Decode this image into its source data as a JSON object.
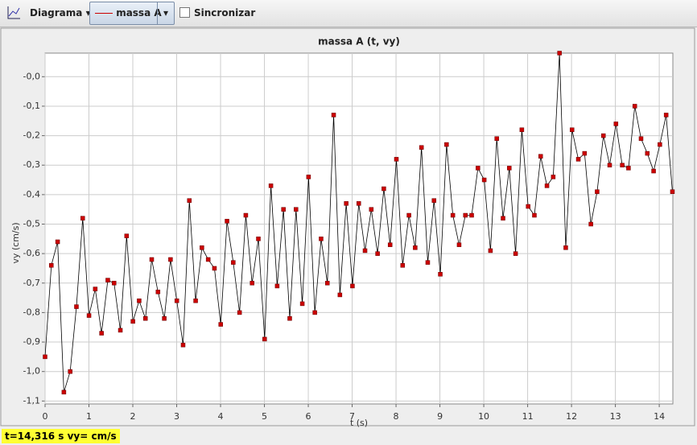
{
  "toolbar": {
    "menu": "Diagrama",
    "track": "massa A",
    "sync": "Sincronizar"
  },
  "status": "t=14,316 s  vy= cm/s",
  "chart_data": {
    "type": "line",
    "title": "massa A (t, vy)",
    "x_label": "t (s)",
    "y_label": "vy (cm/s)",
    "grid": true,
    "color": "#cc0000",
    "line_color": "#000000",
    "xlim": [
      0,
      14.31
    ],
    "ylim": [
      -1.11,
      0.08
    ],
    "xticks": [
      0,
      1,
      2,
      3,
      4,
      5,
      6,
      7,
      8,
      9,
      10,
      11,
      12,
      13,
      14
    ],
    "yticks": [
      {
        "value": 0,
        "label": "-0,0"
      },
      {
        "value": -0.1,
        "label": "-0,1"
      },
      {
        "value": -0.2,
        "label": "-0,2"
      },
      {
        "value": -0.3,
        "label": "-0,3"
      },
      {
        "value": -0.4,
        "label": "-0,4"
      },
      {
        "value": -0.5,
        "label": "-0,5"
      },
      {
        "value": -0.6,
        "label": "-0,6"
      },
      {
        "value": -0.7,
        "label": "-0,7"
      },
      {
        "value": -0.8,
        "label": "-0,8"
      },
      {
        "value": -0.9,
        "label": "-0,9"
      },
      {
        "value": -1.0,
        "label": "-1,0"
      },
      {
        "value": -1.1,
        "label": "-1,1"
      }
    ],
    "x": [
      0,
      0.143,
      0.286,
      0.429,
      0.572,
      0.715,
      0.858,
      1.001,
      1.144,
      1.287,
      1.43,
      1.573,
      1.716,
      1.859,
      2.002,
      2.145,
      2.288,
      2.431,
      2.574,
      2.717,
      2.86,
      3.003,
      3.146,
      3.289,
      3.432,
      3.575,
      3.718,
      3.861,
      4.004,
      4.147,
      4.29,
      4.433,
      4.576,
      4.719,
      4.862,
      5.005,
      5.148,
      5.291,
      5.434,
      5.577,
      5.72,
      5.863,
      6.006,
      6.149,
      6.292,
      6.435,
      6.578,
      6.721,
      6.864,
      7.007,
      7.15,
      7.293,
      7.436,
      7.579,
      7.722,
      7.865,
      8.008,
      8.151,
      8.294,
      8.437,
      8.58,
      8.723,
      8.866,
      9.009,
      9.152,
      9.295,
      9.438,
      9.581,
      9.724,
      9.867,
      10.01,
      10.153,
      10.296,
      10.439,
      10.582,
      10.725,
      10.868,
      11.011,
      11.154,
      11.297,
      11.44,
      11.583,
      11.726,
      11.869,
      12.012,
      12.155,
      12.298,
      12.441,
      12.584,
      12.727,
      12.87,
      13.013,
      13.156,
      13.299,
      13.442,
      13.585,
      13.728,
      13.871,
      14.014,
      14.157,
      14.3
    ],
    "values": [
      -0.95,
      -0.64,
      -0.56,
      -1.07,
      -1.0,
      -0.78,
      -0.48,
      -0.81,
      -0.72,
      -0.87,
      -0.69,
      -0.7,
      -0.86,
      -0.54,
      -0.83,
      -0.76,
      -0.82,
      -0.62,
      -0.73,
      -0.82,
      -0.62,
      -0.76,
      -0.91,
      -0.42,
      -0.76,
      -0.58,
      -0.62,
      -0.65,
      -0.84,
      -0.49,
      -0.63,
      -0.8,
      -0.47,
      -0.7,
      -0.55,
      -0.89,
      -0.37,
      -0.71,
      -0.45,
      -0.82,
      -0.45,
      -0.77,
      -0.34,
      -0.8,
      -0.55,
      -0.7,
      -0.13,
      -0.74,
      -0.43,
      -0.71,
      -0.43,
      -0.59,
      -0.45,
      -0.6,
      -0.38,
      -0.57,
      -0.28,
      -0.64,
      -0.47,
      -0.58,
      -0.24,
      -0.63,
      -0.42,
      -0.67,
      -0.23,
      -0.47,
      -0.57,
      -0.47,
      -0.47,
      -0.31,
      -0.35,
      -0.59,
      -0.21,
      -0.48,
      -0.31,
      -0.6,
      -0.18,
      -0.44,
      -0.47,
      -0.27,
      -0.37,
      -0.34,
      0.08,
      -0.58,
      -0.18,
      -0.28,
      -0.26,
      -0.5,
      -0.39,
      -0.2,
      -0.3,
      -0.16,
      -0.3,
      -0.31,
      -0.1,
      -0.21,
      -0.26,
      -0.32,
      -0.23,
      -0.13,
      -0.39
    ]
  }
}
